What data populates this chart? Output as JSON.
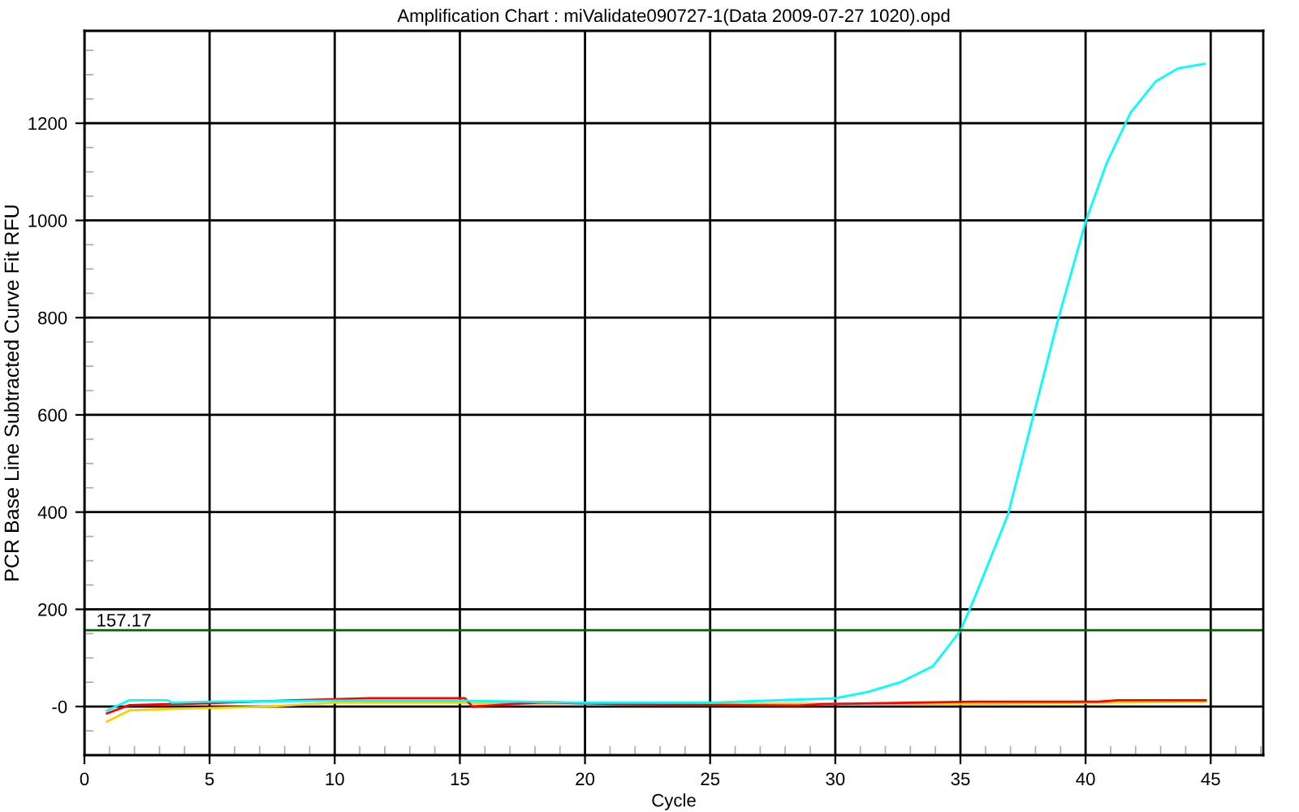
{
  "chart_data": {
    "type": "line",
    "title": "Amplification Chart : miValidate090727-1(Data 2009-07-27 1020).opd",
    "xlabel": "Cycle",
    "ylabel": "PCR Base Line Subtracted Curve Fit RFU",
    "xlim": [
      0,
      47.1
    ],
    "ylim": [
      -100,
      1390
    ],
    "xticks": [
      0,
      5,
      10,
      15,
      20,
      25,
      30,
      35,
      40,
      45
    ],
    "yticks": [
      {
        "value": 0,
        "label": "-0"
      },
      200,
      400,
      600,
      800,
      1000,
      1200
    ],
    "grid": true,
    "ref_lines": [
      {
        "axis": "y",
        "value": 157.17,
        "label": "157.17",
        "color": "#006400"
      }
    ],
    "series": [
      {
        "color": "#ffcc00",
        "x": [
          0.9,
          1.8,
          3.4,
          5,
          7.4,
          9,
          10,
          15,
          20,
          25,
          30,
          35,
          40,
          44.8
        ],
        "values": [
          -31,
          -8,
          -5,
          -3,
          0,
          5,
          8,
          8,
          6,
          6,
          6,
          5,
          8,
          10
        ]
      },
      {
        "color": "#ff0000",
        "x": [
          0.9,
          1.8,
          5,
          8.4,
          11.4,
          15.2,
          15.5,
          18.3,
          21.3,
          28.5,
          29.5,
          35.5,
          38.3,
          40.5,
          41.3,
          44.8
        ],
        "values": [
          -14,
          3,
          7,
          13,
          17,
          17,
          0,
          9,
          5,
          2,
          5,
          10,
          10,
          10,
          13,
          13
        ]
      },
      {
        "color": "#00ffff",
        "x": [
          0.9,
          1.8,
          3.3,
          3.5,
          5,
          10,
          15,
          20,
          25,
          28.3,
          30,
          31.3,
          32.6,
          33.9,
          35,
          35.6,
          36.9,
          37.96,
          38.9,
          40,
          40.85,
          41.8,
          42.8,
          43.7,
          44.75
        ],
        "values": [
          -8,
          13,
          13,
          8,
          10,
          12,
          12,
          8,
          8,
          14,
          17,
          30,
          50,
          83,
          156,
          228,
          395,
          608,
          796,
          997,
          1119,
          1222,
          1286,
          1313,
          1322
        ]
      }
    ]
  }
}
